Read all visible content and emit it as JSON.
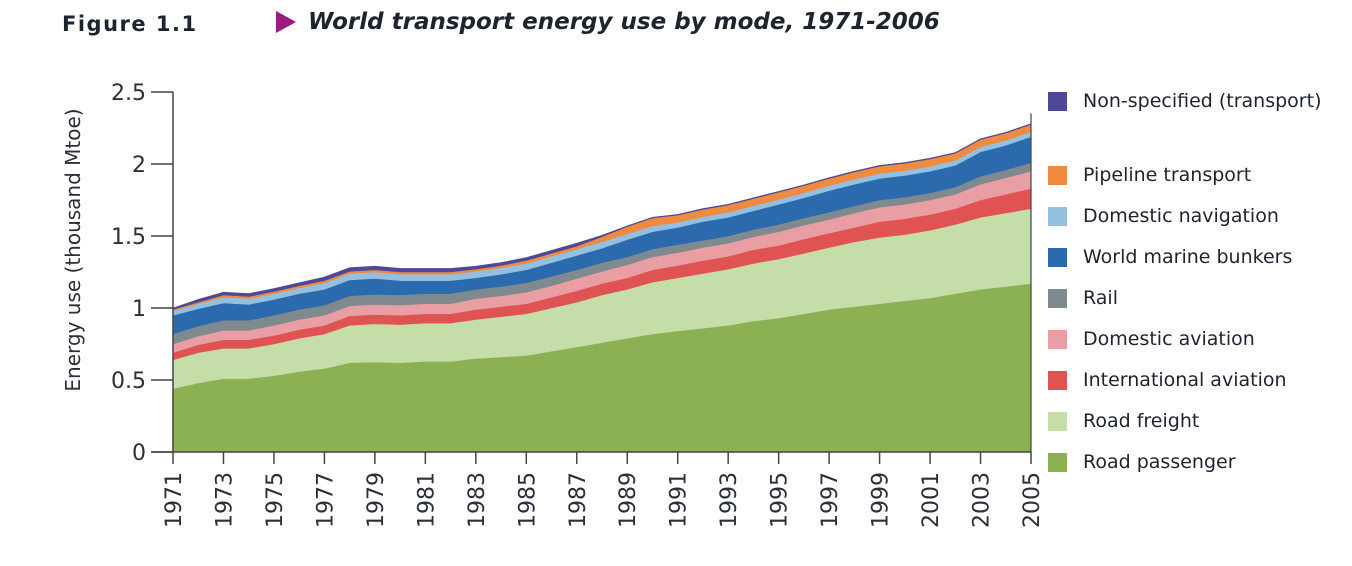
{
  "figure": {
    "label": "Figure 1.1",
    "title": "World transport energy use by mode, 1971-2006",
    "arrow_color": "#9b1b7e"
  },
  "chart_data": {
    "type": "area",
    "stacked": true,
    "title": "World transport energy use by mode, 1971-2006",
    "xlabel": "",
    "ylabel": "Energy use (thousand Mtoe)",
    "ylim": [
      0,
      2.5
    ],
    "yticks": [
      "0",
      "0.5",
      "1",
      "1.5",
      "2",
      "2.5"
    ],
    "ytick_values": [
      0,
      0.5,
      1,
      1.5,
      2,
      2.5
    ],
    "xlim": [
      1971,
      2005
    ],
    "xtick_labels": [
      "1971",
      "1973",
      "1975",
      "1977",
      "1979",
      "1981",
      "1983",
      "1985",
      "1987",
      "1989",
      "1991",
      "1993",
      "1995",
      "1997",
      "1999",
      "2001",
      "2003",
      "2005"
    ],
    "grid": false,
    "legend_position": "right",
    "x": [
      1971,
      1972,
      1973,
      1974,
      1975,
      1976,
      1977,
      1978,
      1979,
      1980,
      1981,
      1982,
      1983,
      1984,
      1985,
      1986,
      1987,
      1988,
      1989,
      1990,
      1991,
      1992,
      1993,
      1994,
      1995,
      1996,
      1997,
      1998,
      1999,
      2000,
      2001,
      2002,
      2003,
      2004,
      2005
    ],
    "series": [
      {
        "name": "Road passenger",
        "color": "#8cb153",
        "values": [
          0.44,
          0.48,
          0.51,
          0.51,
          0.53,
          0.56,
          0.58,
          0.62,
          0.625,
          0.62,
          0.63,
          0.63,
          0.65,
          0.66,
          0.67,
          0.7,
          0.73,
          0.76,
          0.79,
          0.82,
          0.84,
          0.86,
          0.88,
          0.91,
          0.93,
          0.96,
          0.99,
          1.01,
          1.03,
          1.05,
          1.07,
          1.1,
          1.13,
          1.15,
          1.17
        ]
      },
      {
        "name": "Road freight",
        "color": "#c5dda8",
        "values": [
          0.2,
          0.21,
          0.21,
          0.21,
          0.22,
          0.23,
          0.24,
          0.26,
          0.265,
          0.265,
          0.265,
          0.265,
          0.27,
          0.28,
          0.29,
          0.3,
          0.31,
          0.33,
          0.34,
          0.36,
          0.37,
          0.38,
          0.39,
          0.4,
          0.41,
          0.42,
          0.43,
          0.45,
          0.46,
          0.46,
          0.47,
          0.48,
          0.5,
          0.51,
          0.52
        ]
      },
      {
        "name": "International aviation",
        "color": "#e05353",
        "values": [
          0.05,
          0.055,
          0.06,
          0.06,
          0.06,
          0.06,
          0.06,
          0.065,
          0.065,
          0.065,
          0.065,
          0.065,
          0.07,
          0.07,
          0.07,
          0.075,
          0.08,
          0.08,
          0.08,
          0.085,
          0.085,
          0.09,
          0.09,
          0.095,
          0.095,
          0.1,
          0.1,
          0.1,
          0.11,
          0.11,
          0.11,
          0.11,
          0.12,
          0.13,
          0.14
        ]
      },
      {
        "name": "Domestic aviation",
        "color": "#e89ea3",
        "values": [
          0.06,
          0.06,
          0.065,
          0.065,
          0.07,
          0.07,
          0.07,
          0.07,
          0.07,
          0.07,
          0.07,
          0.07,
          0.075,
          0.075,
          0.08,
          0.08,
          0.085,
          0.085,
          0.09,
          0.09,
          0.09,
          0.09,
          0.09,
          0.09,
          0.095,
          0.095,
          0.095,
          0.1,
          0.1,
          0.1,
          0.1,
          0.1,
          0.11,
          0.115,
          0.12
        ]
      },
      {
        "name": "Rail",
        "color": "#7e8a8d",
        "values": [
          0.07,
          0.07,
          0.07,
          0.07,
          0.07,
          0.07,
          0.07,
          0.07,
          0.07,
          0.07,
          0.07,
          0.07,
          0.065,
          0.065,
          0.065,
          0.065,
          0.06,
          0.06,
          0.055,
          0.055,
          0.055,
          0.05,
          0.05,
          0.05,
          0.05,
          0.05,
          0.05,
          0.05,
          0.05,
          0.05,
          0.05,
          0.05,
          0.055,
          0.055,
          0.06
        ]
      },
      {
        "name": "World marine bunkers",
        "color": "#2a6aad",
        "values": [
          0.13,
          0.12,
          0.12,
          0.11,
          0.11,
          0.11,
          0.11,
          0.11,
          0.11,
          0.1,
          0.09,
          0.09,
          0.08,
          0.085,
          0.09,
          0.095,
          0.1,
          0.1,
          0.12,
          0.12,
          0.12,
          0.13,
          0.13,
          0.13,
          0.14,
          0.14,
          0.15,
          0.15,
          0.15,
          0.15,
          0.15,
          0.15,
          0.17,
          0.17,
          0.18
        ]
      },
      {
        "name": "Domestic navigation",
        "color": "#94c0e0",
        "values": [
          0.03,
          0.035,
          0.04,
          0.04,
          0.04,
          0.04,
          0.045,
          0.045,
          0.045,
          0.045,
          0.045,
          0.045,
          0.045,
          0.045,
          0.045,
          0.045,
          0.045,
          0.045,
          0.04,
          0.04,
          0.035,
          0.035,
          0.035,
          0.035,
          0.035,
          0.035,
          0.035,
          0.035,
          0.035,
          0.035,
          0.035,
          0.035,
          0.035,
          0.035,
          0.035
        ]
      },
      {
        "name": "Pipeline transport",
        "color": "#f08a3e",
        "values": [
          0.01,
          0.01,
          0.015,
          0.015,
          0.015,
          0.015,
          0.015,
          0.015,
          0.015,
          0.015,
          0.015,
          0.015,
          0.015,
          0.015,
          0.02,
          0.02,
          0.02,
          0.035,
          0.05,
          0.055,
          0.05,
          0.05,
          0.05,
          0.05,
          0.05,
          0.05,
          0.05,
          0.05,
          0.05,
          0.05,
          0.05,
          0.05,
          0.05,
          0.05,
          0.05
        ]
      },
      {
        "name": "Non-specified (transport)",
        "color": "#4f4895",
        "values": [
          0.01,
          0.02,
          0.02,
          0.02,
          0.02,
          0.02,
          0.025,
          0.025,
          0.025,
          0.025,
          0.025,
          0.025,
          0.02,
          0.02,
          0.02,
          0.02,
          0.02,
          0.01,
          0.005,
          0.005,
          0.005,
          0.005,
          0.005,
          0.005,
          0.005,
          0.005,
          0.005,
          0.005,
          0.005,
          0.005,
          0.005,
          0.005,
          0.005,
          0.005,
          0.005
        ]
      }
    ]
  },
  "legend": {
    "items": [
      {
        "label": "Non-specified (transport)",
        "color": "#4f4895"
      },
      {
        "label": "Pipeline transport",
        "color": "#f08a3e"
      },
      {
        "label": "Domestic navigation",
        "color": "#94c0e0"
      },
      {
        "label": "World marine bunkers",
        "color": "#2a6aad"
      },
      {
        "label": "Rail",
        "color": "#7e8a8d"
      },
      {
        "label": "Domestic aviation",
        "color": "#e89ea3"
      },
      {
        "label": "International aviation",
        "color": "#e05353"
      },
      {
        "label": "Road freight",
        "color": "#c5dda8"
      },
      {
        "label": "Road passenger",
        "color": "#8cb153"
      }
    ]
  }
}
